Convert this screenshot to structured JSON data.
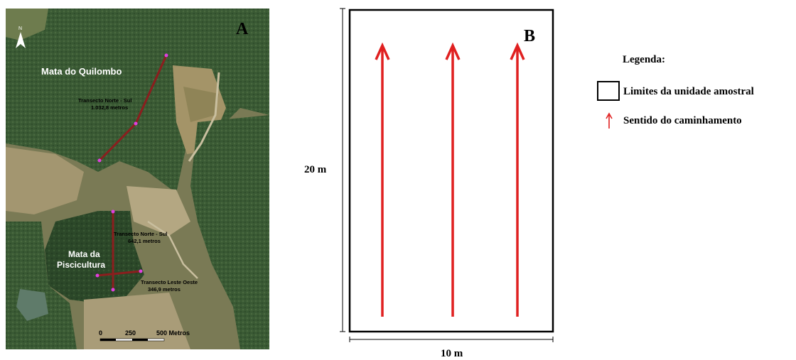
{
  "panel_a": {
    "letter": "A",
    "north_label": "N",
    "forests": [
      "Mata do Quilombo",
      "Mata da Piscicultura"
    ],
    "transects": [
      {
        "name": "Transecto Norte - Sul",
        "length": "1.032,8 metros"
      },
      {
        "name": "Transecto Norte - Sul",
        "length": "642,1 metros"
      },
      {
        "name": "Transecto Leste Oeste",
        "length": "346,9 metros"
      }
    ],
    "scale_bar": {
      "ticks": [
        "0",
        "250",
        "500 Metros"
      ]
    },
    "colors": {
      "transect": "#8b1e1e",
      "points": "#e040e0",
      "forest_dark": "#2d4a2a",
      "clearing": "#9a8c68"
    }
  },
  "panel_b": {
    "letter": "B",
    "height_label": "20 m",
    "width_label": "10 m",
    "legend": {
      "title": "Legenda:",
      "items": [
        {
          "symbol": "square-outline-icon",
          "label": "Limites da unidade amostral"
        },
        {
          "symbol": "red-arrow-icon",
          "label": "Sentido do caminhamento"
        }
      ]
    },
    "arrow_count": 3,
    "colors": {
      "arrow": "#e02020",
      "border": "#000000"
    }
  }
}
